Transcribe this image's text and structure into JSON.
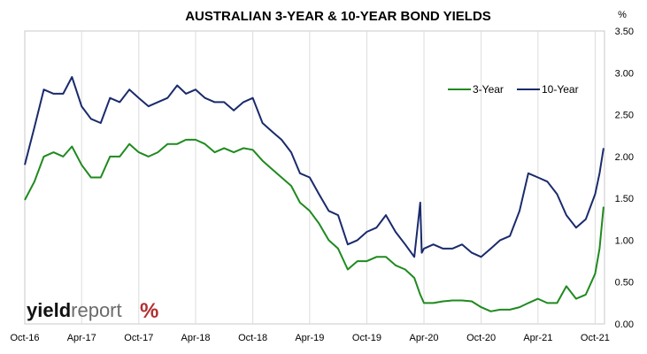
{
  "chart_data": {
    "type": "line",
    "title": "AUSTRALIAN 3-YEAR & 10-YEAR BOND YIELDS",
    "y_unit": "%",
    "ylim": [
      0,
      3.5
    ],
    "y_ticks": [
      "0.00",
      "0.50",
      "1.00",
      "1.50",
      "2.00",
      "2.50",
      "3.00",
      "3.50"
    ],
    "x_tick_labels": [
      "Oct-16",
      "Apr-17",
      "Oct-17",
      "Apr-18",
      "Oct-18",
      "Apr-19",
      "Oct-19",
      "Apr-20",
      "Oct-20",
      "Apr-21",
      "Oct-21"
    ],
    "xlim": [
      "2016-10-01",
      "2021-10-31"
    ],
    "grid": "vertical",
    "legend_position": "top-right",
    "series": [
      {
        "name": "3-Year",
        "color": "#1f8a1f",
        "points": [
          [
            "2016-10-01",
            1.48
          ],
          [
            "2016-11-01",
            1.7
          ],
          [
            "2016-12-01",
            2.0
          ],
          [
            "2017-01-01",
            2.05
          ],
          [
            "2017-02-01",
            2.0
          ],
          [
            "2017-03-01",
            2.12
          ],
          [
            "2017-04-01",
            1.9
          ],
          [
            "2017-05-01",
            1.75
          ],
          [
            "2017-06-01",
            1.75
          ],
          [
            "2017-07-01",
            2.0
          ],
          [
            "2017-08-01",
            2.0
          ],
          [
            "2017-09-01",
            2.15
          ],
          [
            "2017-10-01",
            2.05
          ],
          [
            "2017-11-01",
            2.0
          ],
          [
            "2017-12-01",
            2.05
          ],
          [
            "2018-01-01",
            2.15
          ],
          [
            "2018-02-01",
            2.15
          ],
          [
            "2018-03-01",
            2.2
          ],
          [
            "2018-04-01",
            2.2
          ],
          [
            "2018-05-01",
            2.15
          ],
          [
            "2018-06-01",
            2.05
          ],
          [
            "2018-07-01",
            2.1
          ],
          [
            "2018-08-01",
            2.05
          ],
          [
            "2018-09-01",
            2.1
          ],
          [
            "2018-10-01",
            2.08
          ],
          [
            "2018-11-01",
            1.95
          ],
          [
            "2018-12-01",
            1.85
          ],
          [
            "2019-01-01",
            1.75
          ],
          [
            "2019-02-01",
            1.65
          ],
          [
            "2019-03-01",
            1.45
          ],
          [
            "2019-04-01",
            1.35
          ],
          [
            "2019-05-01",
            1.2
          ],
          [
            "2019-06-01",
            1.0
          ],
          [
            "2019-07-01",
            0.9
          ],
          [
            "2019-08-01",
            0.65
          ],
          [
            "2019-09-01",
            0.75
          ],
          [
            "2019-10-01",
            0.75
          ],
          [
            "2019-11-01",
            0.8
          ],
          [
            "2019-12-01",
            0.8
          ],
          [
            "2020-01-01",
            0.7
          ],
          [
            "2020-02-01",
            0.65
          ],
          [
            "2020-03-01",
            0.55
          ],
          [
            "2020-03-20",
            0.35
          ],
          [
            "2020-04-01",
            0.25
          ],
          [
            "2020-05-01",
            0.25
          ],
          [
            "2020-06-01",
            0.27
          ],
          [
            "2020-07-01",
            0.28
          ],
          [
            "2020-08-01",
            0.28
          ],
          [
            "2020-09-01",
            0.27
          ],
          [
            "2020-10-01",
            0.2
          ],
          [
            "2020-11-01",
            0.15
          ],
          [
            "2020-12-01",
            0.17
          ],
          [
            "2021-01-01",
            0.17
          ],
          [
            "2021-02-01",
            0.2
          ],
          [
            "2021-03-01",
            0.25
          ],
          [
            "2021-04-01",
            0.3
          ],
          [
            "2021-05-01",
            0.25
          ],
          [
            "2021-06-01",
            0.25
          ],
          [
            "2021-07-01",
            0.45
          ],
          [
            "2021-08-01",
            0.3
          ],
          [
            "2021-09-01",
            0.35
          ],
          [
            "2021-10-01",
            0.6
          ],
          [
            "2021-10-15",
            0.9
          ],
          [
            "2021-10-28",
            1.4
          ]
        ]
      },
      {
        "name": "10-Year",
        "color": "#1a2a6c",
        "points": [
          [
            "2016-10-01",
            1.9
          ],
          [
            "2016-11-01",
            2.35
          ],
          [
            "2016-12-01",
            2.8
          ],
          [
            "2017-01-01",
            2.75
          ],
          [
            "2017-02-01",
            2.75
          ],
          [
            "2017-03-01",
            2.95
          ],
          [
            "2017-04-01",
            2.6
          ],
          [
            "2017-05-01",
            2.45
          ],
          [
            "2017-06-01",
            2.4
          ],
          [
            "2017-07-01",
            2.7
          ],
          [
            "2017-08-01",
            2.65
          ],
          [
            "2017-09-01",
            2.8
          ],
          [
            "2017-10-01",
            2.7
          ],
          [
            "2017-11-01",
            2.6
          ],
          [
            "2017-12-01",
            2.65
          ],
          [
            "2018-01-01",
            2.7
          ],
          [
            "2018-02-01",
            2.85
          ],
          [
            "2018-03-01",
            2.75
          ],
          [
            "2018-04-01",
            2.8
          ],
          [
            "2018-05-01",
            2.7
          ],
          [
            "2018-06-01",
            2.65
          ],
          [
            "2018-07-01",
            2.65
          ],
          [
            "2018-08-01",
            2.55
          ],
          [
            "2018-09-01",
            2.65
          ],
          [
            "2018-10-01",
            2.7
          ],
          [
            "2018-11-01",
            2.4
          ],
          [
            "2018-12-01",
            2.3
          ],
          [
            "2019-01-01",
            2.2
          ],
          [
            "2019-02-01",
            2.05
          ],
          [
            "2019-03-01",
            1.8
          ],
          [
            "2019-04-01",
            1.75
          ],
          [
            "2019-05-01",
            1.55
          ],
          [
            "2019-06-01",
            1.35
          ],
          [
            "2019-07-01",
            1.3
          ],
          [
            "2019-08-01",
            0.95
          ],
          [
            "2019-09-01",
            1.0
          ],
          [
            "2019-10-01",
            1.1
          ],
          [
            "2019-11-01",
            1.15
          ],
          [
            "2019-12-01",
            1.3
          ],
          [
            "2020-01-01",
            1.1
          ],
          [
            "2020-02-01",
            0.95
          ],
          [
            "2020-03-01",
            0.8
          ],
          [
            "2020-03-20",
            1.45
          ],
          [
            "2020-03-25",
            0.85
          ],
          [
            "2020-04-01",
            0.9
          ],
          [
            "2020-05-01",
            0.95
          ],
          [
            "2020-06-01",
            0.9
          ],
          [
            "2020-07-01",
            0.9
          ],
          [
            "2020-08-01",
            0.95
          ],
          [
            "2020-09-01",
            0.85
          ],
          [
            "2020-10-01",
            0.8
          ],
          [
            "2020-11-01",
            0.9
          ],
          [
            "2020-12-01",
            1.0
          ],
          [
            "2021-01-01",
            1.05
          ],
          [
            "2021-02-01",
            1.35
          ],
          [
            "2021-03-01",
            1.8
          ],
          [
            "2021-04-01",
            1.75
          ],
          [
            "2021-05-01",
            1.7
          ],
          [
            "2021-06-01",
            1.55
          ],
          [
            "2021-07-01",
            1.3
          ],
          [
            "2021-08-01",
            1.15
          ],
          [
            "2021-09-01",
            1.25
          ],
          [
            "2021-10-01",
            1.55
          ],
          [
            "2021-10-15",
            1.8
          ],
          [
            "2021-10-28",
            2.1
          ]
        ]
      }
    ]
  },
  "logo": {
    "part1": "yield",
    "part2": "report",
    "symbol": "%"
  }
}
